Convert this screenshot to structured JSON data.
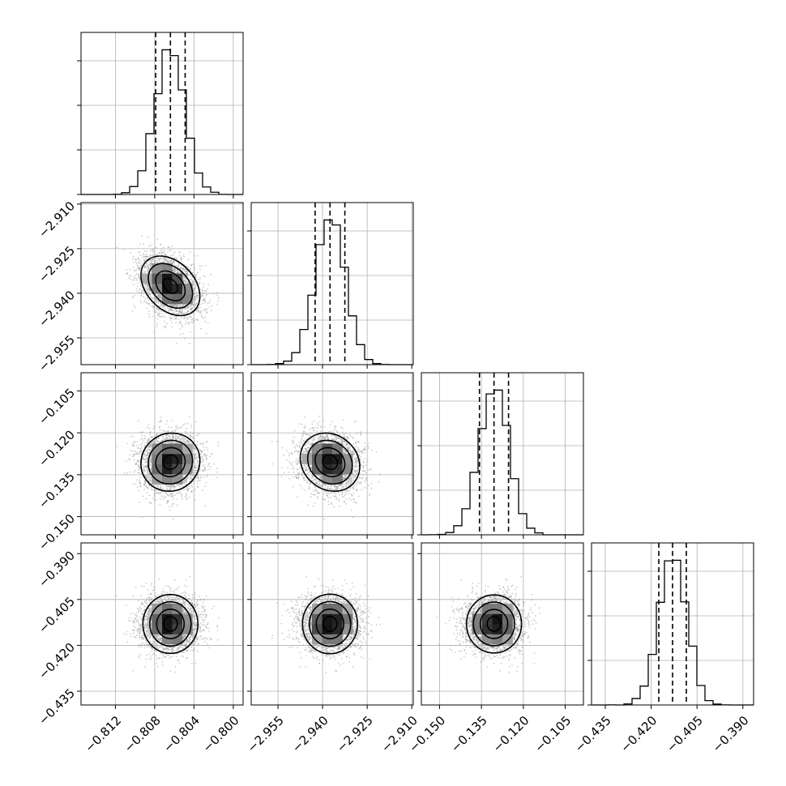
{
  "chart_data": {
    "type": "corner",
    "parameters": [
      {
        "range": [
          -0.8155,
          -0.799
        ],
        "ticks": [
          -0.812,
          -0.808,
          -0.804,
          -0.8
        ],
        "tick_labels": [
          "−0.812",
          "−0.808",
          "−0.804",
          "−0.800"
        ],
        "mean": -0.8064,
        "std": 0.0015,
        "quantiles": [
          -0.8079,
          -0.8064,
          -0.8049
        ]
      },
      {
        "range": [
          -2.964,
          -2.9095
        ],
        "ticks": [
          -2.955,
          -2.94,
          -2.925,
          -2.91
        ],
        "tick_labels": [
          "−2.955",
          "−2.940",
          "−2.925",
          "−2.910"
        ],
        "mean": -2.9375,
        "std": 0.005,
        "quantiles": [
          -2.9425,
          -2.9375,
          -2.9325
        ]
      },
      {
        "range": [
          -0.1565,
          -0.0985
        ],
        "ticks": [
          -0.15,
          -0.135,
          -0.12,
          -0.105
        ],
        "tick_labels": [
          "−0.150",
          "−0.135",
          "−0.120",
          "−0.105"
        ],
        "mean": -0.1305,
        "std": 0.0052,
        "quantiles": [
          -0.1357,
          -0.1305,
          -0.1253
        ]
      },
      {
        "range": [
          -0.4395,
          -0.3865
        ],
        "ticks": [
          -0.435,
          -0.42,
          -0.405,
          -0.39
        ],
        "tick_labels": [
          "−0.435",
          "−0.420",
          "−0.405",
          "−0.390"
        ],
        "mean": -0.413,
        "std": 0.0045,
        "quantiles": [
          -0.4175,
          -0.413,
          -0.4085
        ]
      }
    ],
    "correlations": [
      [
        0,
        1,
        -0.35
      ],
      [
        0,
        2,
        0.05
      ],
      [
        0,
        3,
        0.0
      ],
      [
        1,
        2,
        -0.15
      ],
      [
        1,
        3,
        0.0
      ],
      [
        2,
        3,
        0.0
      ]
    ],
    "histogram": {
      "bins": 20,
      "style": "step"
    },
    "quantile_lines": "dashed",
    "contour_levels_sigma": [
      0.5,
      1.0,
      1.5,
      2.0
    ],
    "grid": true,
    "num_samples": 6000
  }
}
